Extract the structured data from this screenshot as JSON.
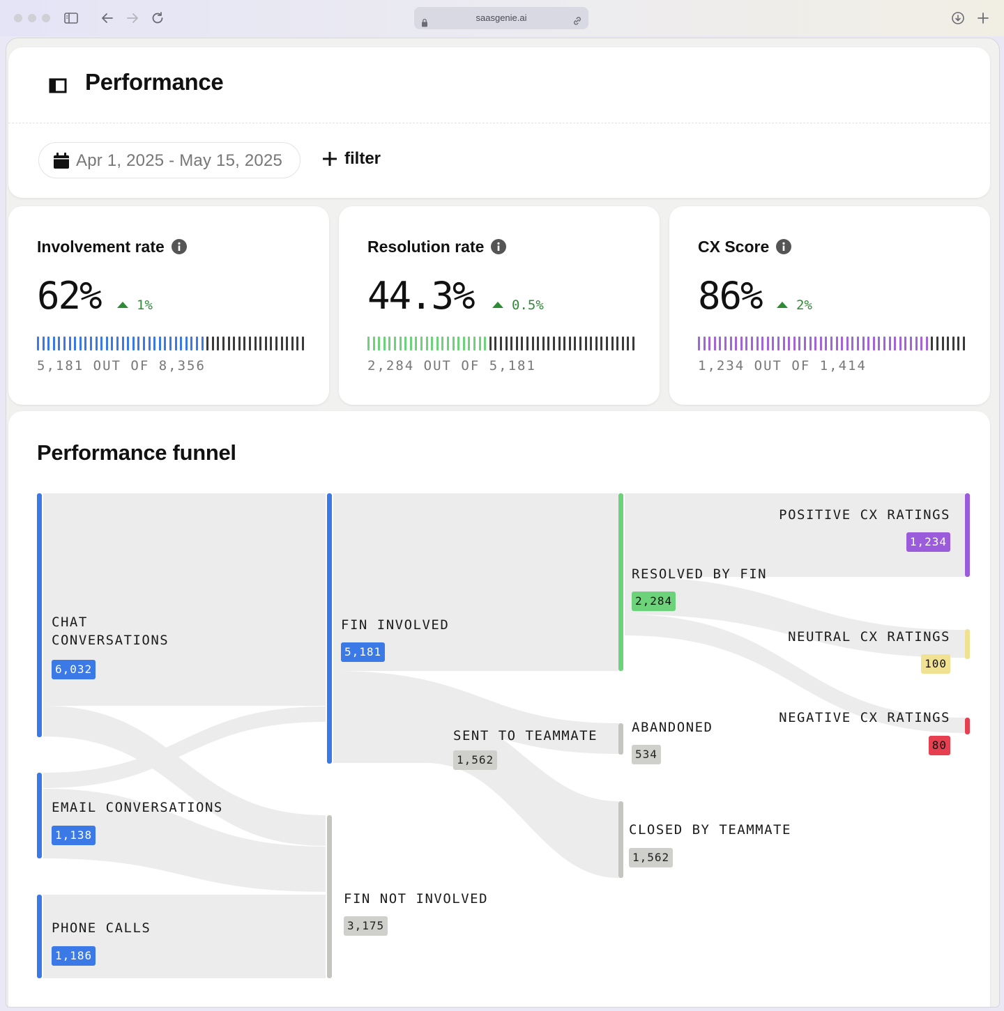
{
  "browser": {
    "url": "saasgenie.ai"
  },
  "page": {
    "title": "Performance",
    "date_range": "Apr 1, 2025 - May 15, 2025",
    "filter_label": "filter"
  },
  "metrics": [
    {
      "title": "Involvement rate",
      "value": "62%",
      "delta": "1%",
      "summary": "5,181 OUT OF 8,356",
      "fill_fraction": 0.62,
      "color": "#3b7ae6"
    },
    {
      "title": "Resolution rate",
      "value": "44.3%",
      "delta": "0.5%",
      "summary": "2,284 OUT OF 5,181",
      "fill_fraction": 0.443,
      "color": "#6cd37a"
    },
    {
      "title": "CX Score",
      "value": "86%",
      "delta": "2%",
      "summary": "1,234 OUT OF 1,414",
      "fill_fraction": 0.86,
      "color": "#a363d9"
    }
  ],
  "funnel": {
    "title": "Performance funnel",
    "nodes": {
      "chat": {
        "label1": "CHAT",
        "label2": "CONVERSATIONS",
        "value": "6,032"
      },
      "email": {
        "label": "EMAIL CONVERSATIONS",
        "value": "1,138"
      },
      "phone": {
        "label": "PHONE CALLS",
        "value": "1,186"
      },
      "fin_involved": {
        "label": "FIN INVOLVED",
        "value": "5,181"
      },
      "fin_not_involved": {
        "label": "FIN NOT INVOLVED",
        "value": "3,175"
      },
      "sent_to_teammate": {
        "label": "SENT TO TEAMMATE",
        "value": "1,562"
      },
      "resolved_by_fin": {
        "label": "RESOLVED BY FIN",
        "value": "2,284"
      },
      "abandoned": {
        "label": "ABANDONED",
        "value": "534"
      },
      "closed_by_teammate": {
        "label": "CLOSED BY TEAMMATE",
        "value": "1,562"
      },
      "positive": {
        "label": "POSITIVE CX RATINGS",
        "value": "1,234"
      },
      "neutral": {
        "label": "NEUTRAL CX RATINGS",
        "value": "100"
      },
      "negative": {
        "label": "NEGATIVE CX RATINGS",
        "value": "80"
      }
    },
    "colors": {
      "blue": "#3b7ae6",
      "green": "#6cd37a",
      "gray": "#c5c5c0",
      "purple": "#9b5cdc",
      "yellow": "#f0e193",
      "red": "#e64050",
      "flow": "#ececec"
    }
  }
}
